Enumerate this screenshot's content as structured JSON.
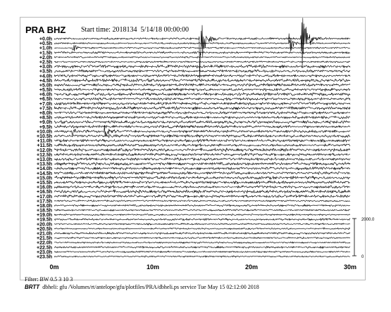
{
  "header": {
    "station": "PRA BHZ",
    "start_time": "Start time: 2018134  5/14/18 00:00:00"
  },
  "footer": {
    "filter": "Filter: BW 0.5 3 10 3",
    "brand": "BRTT",
    "info": "dbheli: gfu /Volumes/rt/antelope/gfu/plotfiles/PRA/dbheli.ps service Tue May 15 02:12:00 2018"
  },
  "chart_data": {
    "type": "line",
    "title": "PRA BHZ",
    "subtitle": "Start time: 2018134  5/14/18 00:00:00",
    "row_labels": [
      "+0.0h",
      "+0.5h",
      "+1.0h",
      "+1.5h",
      "+2.0h",
      "+2.5h",
      "+3.0h",
      "+3.5h",
      "+4.0h",
      "+4.5h",
      "+5.0h",
      "+5.5h",
      "+6.0h",
      "+6.5h",
      "+7.0h",
      "+7.5h",
      "+8.0h",
      "+8.5h",
      "+9.0h",
      "+9.5h",
      "+10.0h",
      "+10.5h",
      "+11.0h",
      "+11.5h",
      "+12.0h",
      "+12.5h",
      "+13.0h",
      "+13.5h",
      "+14.0h",
      "+14.5h",
      "+15.0h",
      "+15.5h",
      "+16.0h",
      "+16.5h",
      "+17.0h",
      "+17.5h",
      "+18.0h",
      "+18.5h",
      "+19.0h",
      "+19.5h",
      "+20.0h",
      "+20.5h",
      "+21.0h",
      "+21.5h",
      "+22.0h",
      "+22.5h",
      "+23.0h",
      "+23.5h"
    ],
    "x_ticks": [
      "0m",
      "10m",
      "20m",
      "30m"
    ],
    "x_range_minutes": [
      0,
      30
    ],
    "scale_bar": {
      "top_label": "2000.0",
      "bottom_label": "0"
    },
    "events": [
      {
        "row": 0,
        "minute": 14.8,
        "amplitude": "large"
      },
      {
        "row": 0,
        "minute": 25.1,
        "amplitude": "large"
      },
      {
        "row": 1,
        "minute": 23.9,
        "amplitude": "medium"
      },
      {
        "row": 2,
        "minute": 2.0,
        "amplitude": "small"
      },
      {
        "row": 20,
        "minute": 5.2,
        "amplitude": "medium"
      },
      {
        "row": 20,
        "minute": 1.8,
        "amplitude": "small"
      }
    ]
  }
}
